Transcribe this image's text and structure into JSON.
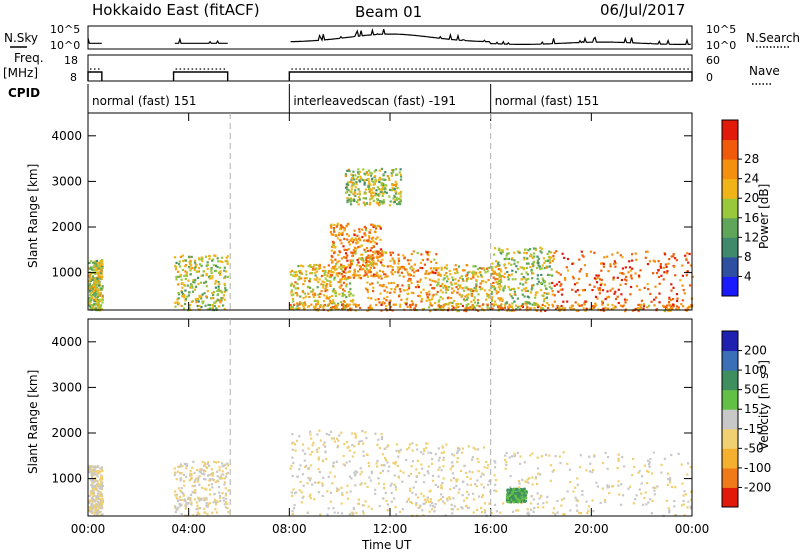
{
  "header": {
    "station": "Hokkaido East (fitACF)",
    "beam": "Beam 01",
    "date": "06/Jul/2017"
  },
  "side_labels": {
    "nsky": "N.Sky",
    "nsearch": "N.Search",
    "freq": "Freq.",
    "freq_unit": "[MHz]",
    "nave": "Nave",
    "cpid": "CPID"
  },
  "noise_axis": {
    "left_top": "10^5",
    "left_bottom": "10^0",
    "right_top": "10^5",
    "right_bottom": "10^0"
  },
  "freq_axis": {
    "left_top": "18",
    "left_bottom": "8",
    "right_top": "60",
    "right_bottom": "0"
  },
  "cpid_segments": [
    {
      "label": "normal (fast) 151",
      "start_h": 0.0,
      "end_h": 8.0
    },
    {
      "label": "interleavedscan (fast) -191",
      "start_h": 8.0,
      "end_h": 16.0
    },
    {
      "label": "normal (fast) 151",
      "start_h": 16.0,
      "end_h": 24.0
    }
  ],
  "x_axis": {
    "label": "Time UT",
    "ticks": [
      "00:00",
      "04:00",
      "08:00",
      "12:00",
      "16:00",
      "20:00",
      "00:00"
    ],
    "tick_hours": [
      0,
      4,
      8,
      12,
      16,
      20,
      24
    ]
  },
  "colorbars": {
    "power": {
      "label": "Power [dB]",
      "ticks": [
        "4",
        "8",
        "12",
        "16",
        "20",
        "24",
        "28"
      ],
      "colors": [
        "#1a1aff",
        "#2f4fa0",
        "#3f8a6c",
        "#5fa55a",
        "#9ac83c",
        "#f0b419",
        "#f5900f",
        "#f05a0a",
        "#e21a0a"
      ]
    },
    "velocity": {
      "label_main": "Velocity [m s",
      "label_sup": "-1",
      "label_end": "]",
      "ticks": [
        "200",
        "100",
        "50",
        "15",
        "-15",
        "-50",
        "-100",
        "-200"
      ],
      "colors": [
        "#2020b0",
        "#3b70b8",
        "#3f8f5e",
        "#62c046",
        "#c8c8c8",
        "#f0d070",
        "#f5b030",
        "#f07a18",
        "#e21a0a"
      ]
    }
  },
  "chart_data": {
    "type": "heatmap",
    "title": "Hokkaido East (fitACF)",
    "xlabel": "Time UT",
    "ylabel": "Slant Range [km]",
    "xlim_hours": [
      0,
      24
    ],
    "ylim_km": [
      180,
      4500
    ],
    "y_ticks": [
      1000,
      2000,
      3000,
      4000
    ],
    "data_gaps_h": [
      [
        0.55,
        3.4
      ],
      [
        5.55,
        8.0
      ]
    ],
    "range_markers_h": [
      5.65,
      16.0
    ],
    "power_regions": [
      {
        "t": [
          0.0,
          0.55
        ],
        "r": [
          200,
          1300
        ],
        "level": 16
      },
      {
        "t": [
          3.4,
          5.55
        ],
        "r": [
          200,
          1400
        ],
        "level": 16
      },
      {
        "t": [
          8.0,
          10.5
        ],
        "r": [
          200,
          1200
        ],
        "level": 20
      },
      {
        "t": [
          9.6,
          11.6
        ],
        "r": [
          900,
          2100
        ],
        "level": 24
      },
      {
        "t": [
          11.0,
          13.8
        ],
        "r": [
          300,
          1500
        ],
        "level": 24
      },
      {
        "t": [
          13.8,
          16.4
        ],
        "r": [
          200,
          1200
        ],
        "level": 20
      },
      {
        "t": [
          16.0,
          18.4
        ],
        "r": [
          200,
          1600
        ],
        "level": 16
      },
      {
        "t": [
          18.4,
          24.0
        ],
        "r": [
          200,
          1500
        ],
        "level": 28
      },
      {
        "t": [
          10.2,
          12.4
        ],
        "r": [
          2500,
          3300
        ],
        "level": 16
      },
      {
        "t": [
          8.0,
          24.0
        ],
        "r": [
          180,
          330
        ],
        "level": 24
      }
    ],
    "velocity_regions": [
      {
        "t": [
          0.0,
          0.55
        ],
        "r": [
          200,
          1300
        ],
        "level": -15
      },
      {
        "t": [
          3.4,
          5.55
        ],
        "r": [
          200,
          1400
        ],
        "level": -15
      },
      {
        "t": [
          8.0,
          12.0
        ],
        "r": [
          200,
          2100
        ],
        "level": -15
      },
      {
        "t": [
          12.0,
          16.0
        ],
        "r": [
          200,
          1800
        ],
        "level": -15
      },
      {
        "t": [
          16.0,
          24.0
        ],
        "r": [
          200,
          1600
        ],
        "level": -15
      },
      {
        "t": [
          16.6,
          17.4
        ],
        "r": [
          500,
          800
        ],
        "level": 50
      }
    ]
  }
}
